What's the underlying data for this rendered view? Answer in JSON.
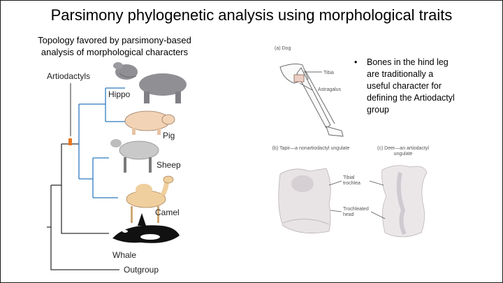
{
  "slide": {
    "title": "Parsimony phylogenetic analysis using morphological traits",
    "subtitle": "Topology favored by parsimony-based analysis of morphological characters"
  },
  "tree": {
    "clade_label": "Artiodactyls",
    "taxa": [
      "Hippo",
      "Pig",
      "Sheep",
      "Camel",
      "Whale",
      "Outgroup"
    ]
  },
  "figure": {
    "panel_a": "(a) Dog",
    "tibia": "Tibia",
    "astragalus": "Astragalus",
    "panel_b": "(b) Tapir—a nonartiodactyl ungulate",
    "panel_c": "(c) Deer—an artiodactyl ungulate",
    "tibial_trochlea": "Tibial trochlea",
    "trochleated_head": "Trochleated head"
  },
  "bullet": "Bones in the hind leg are traditionally a useful character for defining the Artiodactyl group",
  "colors": {
    "artiodactyl_branch": "#2f7bc0",
    "synapomorphy_mark": "#e87722",
    "tree_line": "#333333"
  }
}
